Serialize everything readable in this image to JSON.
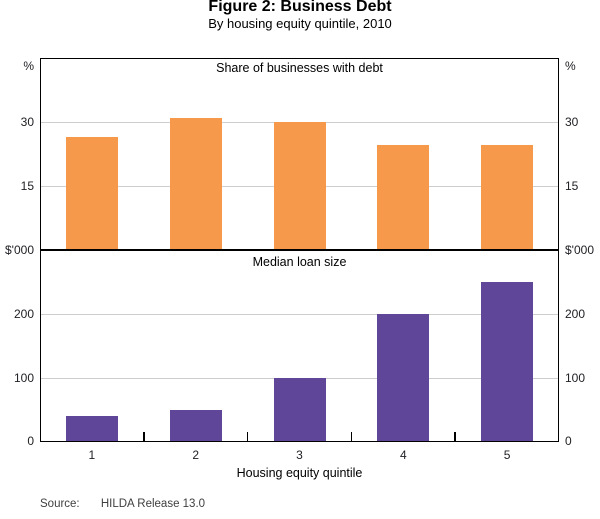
{
  "header": {
    "title": "Figure 2: Business Debt",
    "subtitle": "By housing equity quintile, 2010"
  },
  "x_axis": {
    "title": "Housing equity quintile",
    "categories": [
      "1",
      "2",
      "3",
      "4",
      "5"
    ]
  },
  "footer": {
    "source_label": "Source:",
    "source_value": "HILDA Release 13.0"
  },
  "colors": {
    "top_bar": "#f7994a",
    "bottom_bar": "#5f4699",
    "gridline": "#cdcdcd",
    "axis": "#000000",
    "label": "#212126"
  },
  "chart_data": [
    {
      "type": "bar",
      "panel": "top",
      "title": "Share of businesses with debt",
      "unit": "%",
      "categories": [
        "1",
        "2",
        "3",
        "4",
        "5"
      ],
      "values": [
        26.5,
        31,
        30,
        24.5,
        24.5
      ],
      "ylim": [
        0,
        45
      ],
      "gridlines": [
        15,
        30
      ],
      "bar_color": "#f7994a",
      "grid": true,
      "legend_position": "none"
    },
    {
      "type": "bar",
      "panel": "bottom",
      "title": "Median loan size",
      "unit": "$'000",
      "categories": [
        "1",
        "2",
        "3",
        "4",
        "5"
      ],
      "values": [
        40,
        50,
        100,
        200,
        250
      ],
      "ylim": [
        0,
        300
      ],
      "gridlines": [
        100,
        200
      ],
      "zero_label": "0",
      "bar_color": "#5f4699",
      "grid": true,
      "legend_position": "none"
    }
  ]
}
